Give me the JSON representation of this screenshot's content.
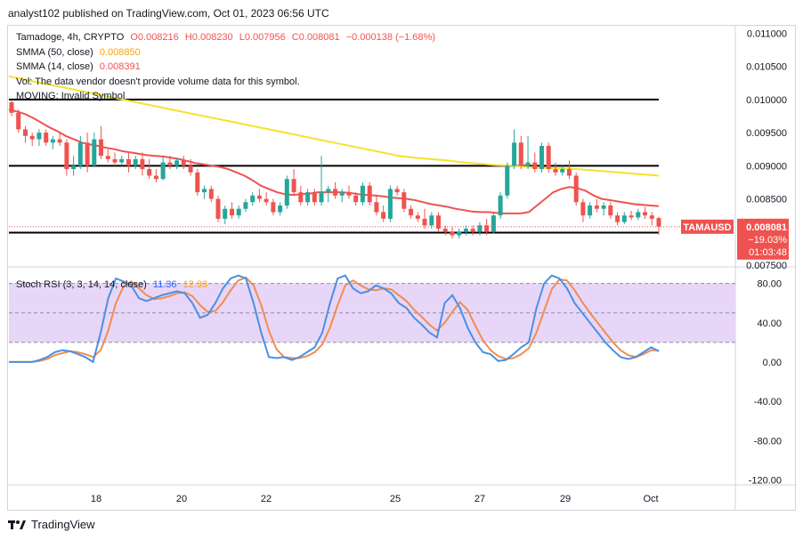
{
  "header": {
    "publisher": "analyst102 published on TradingView.com, Oct 01, 2023 06:56 UTC"
  },
  "legend": {
    "symbol": "Tamadoge, 4h, CRYPTO",
    "open": "O0.008216",
    "high": "H0.008230",
    "low": "L0.007956",
    "close": "C0.008081",
    "change": "−0.000138 (−1.68%)",
    "sma50_label": "SMMA (50, close)",
    "sma50_value": "0.008850",
    "sma14_label": "SMMA (14, close)",
    "sma14_value": "0.008391",
    "vol_note": "Vol: The data vendor doesn't provide volume data for this symbol.",
    "moving_note": "MOVING: Invalid Symbol"
  },
  "stoch": {
    "label": "Stoch RSI (3, 3, 14, 14, close)",
    "k_value": "11.36",
    "d_value": "12.33"
  },
  "price_tag": {
    "symbol": "TAMAUSD",
    "price": "0.008081",
    "change": "−19.03%",
    "countdown": "01:03:48"
  },
  "footer": {
    "brand": "TradingView"
  },
  "colors": {
    "up": "#26a69a",
    "down": "#ef5350",
    "sma50": "#f5e22a",
    "sma14": "#ef5350",
    "stoch_k": "#4a90e2",
    "stoch_d": "#f08c50",
    "band": "#e5d2f7"
  },
  "chart_data": [
    {
      "type": "candlestick",
      "x_tick_labels": [
        "18",
        "20",
        "22",
        "25",
        "27",
        "29",
        "Oct"
      ],
      "y_ticks": [
        "0.011000",
        "0.010500",
        "0.010000",
        "0.009500",
        "0.009000",
        "0.008500",
        "0.007500"
      ],
      "ylim": [
        0.0075,
        0.0111
      ],
      "horizontal_lines": [
        0.01,
        0.009,
        0.00799
      ],
      "candles": [
        [
          0.00996,
          0.00998,
          0.00975,
          0.0098
        ],
        [
          0.0098,
          0.00985,
          0.0095,
          0.00955
        ],
        [
          0.00955,
          0.0096,
          0.00935,
          0.00945
        ],
        [
          0.00945,
          0.0095,
          0.0093,
          0.0094
        ],
        [
          0.0094,
          0.00955,
          0.0093,
          0.0095
        ],
        [
          0.0095,
          0.00955,
          0.0093,
          0.00935
        ],
        [
          0.00935,
          0.00945,
          0.00925,
          0.0094
        ],
        [
          0.0094,
          0.0095,
          0.0093,
          0.00935
        ],
        [
          0.00935,
          0.0094,
          0.00885,
          0.00895
        ],
        [
          0.00895,
          0.00915,
          0.00885,
          0.009
        ],
        [
          0.009,
          0.00945,
          0.00895,
          0.00935
        ],
        [
          0.00935,
          0.0095,
          0.0089,
          0.009
        ],
        [
          0.009,
          0.0095,
          0.009,
          0.0094
        ],
        [
          0.0094,
          0.0096,
          0.0091,
          0.00915
        ],
        [
          0.00915,
          0.00925,
          0.00905,
          0.0091
        ],
        [
          0.0091,
          0.0092,
          0.009,
          0.00905
        ],
        [
          0.00905,
          0.00915,
          0.009,
          0.0091
        ],
        [
          0.0091,
          0.0092,
          0.0089,
          0.009
        ],
        [
          0.009,
          0.00915,
          0.00895,
          0.0091
        ],
        [
          0.0091,
          0.0092,
          0.00885,
          0.00895
        ],
        [
          0.00895,
          0.0091,
          0.0088,
          0.00885
        ],
        [
          0.00885,
          0.00895,
          0.00875,
          0.0088
        ],
        [
          0.0088,
          0.00915,
          0.00878,
          0.00905
        ],
        [
          0.00905,
          0.00915,
          0.00895,
          0.009
        ],
        [
          0.009,
          0.00912,
          0.00895,
          0.00908
        ],
        [
          0.00908,
          0.00915,
          0.00895,
          0.009
        ],
        [
          0.009,
          0.0091,
          0.00885,
          0.0089
        ],
        [
          0.0089,
          0.00895,
          0.00855,
          0.0086
        ],
        [
          0.0086,
          0.0087,
          0.0085,
          0.00865
        ],
        [
          0.00865,
          0.0087,
          0.00845,
          0.0085
        ],
        [
          0.0085,
          0.00855,
          0.00815,
          0.0082
        ],
        [
          0.0082,
          0.0084,
          0.00812,
          0.00835
        ],
        [
          0.00835,
          0.00845,
          0.0082,
          0.00825
        ],
        [
          0.00825,
          0.0084,
          0.0082,
          0.00835
        ],
        [
          0.00835,
          0.0085,
          0.0083,
          0.00845
        ],
        [
          0.00845,
          0.0086,
          0.0084,
          0.00855
        ],
        [
          0.00855,
          0.00865,
          0.00845,
          0.0085
        ],
        [
          0.0085,
          0.0086,
          0.0084,
          0.00845
        ],
        [
          0.00845,
          0.0085,
          0.00825,
          0.0083
        ],
        [
          0.0083,
          0.00845,
          0.00825,
          0.0084
        ],
        [
          0.0084,
          0.00885,
          0.00835,
          0.0088
        ],
        [
          0.0088,
          0.00895,
          0.00855,
          0.0086
        ],
        [
          0.0086,
          0.0087,
          0.0084,
          0.00845
        ],
        [
          0.00845,
          0.00865,
          0.0084,
          0.0086
        ],
        [
          0.0086,
          0.00865,
          0.0084,
          0.00845
        ],
        [
          0.00845,
          0.00915,
          0.0084,
          0.0086
        ],
        [
          0.0086,
          0.0087,
          0.00845,
          0.00865
        ],
        [
          0.00865,
          0.00875,
          0.0085,
          0.00855
        ],
        [
          0.00855,
          0.00865,
          0.00845,
          0.0086
        ],
        [
          0.0086,
          0.0087,
          0.0085,
          0.00855
        ],
        [
          0.00855,
          0.0086,
          0.0084,
          0.00845
        ],
        [
          0.00845,
          0.00875,
          0.0084,
          0.0087
        ],
        [
          0.0087,
          0.00875,
          0.0084,
          0.00845
        ],
        [
          0.00845,
          0.00855,
          0.00825,
          0.0083
        ],
        [
          0.0083,
          0.0084,
          0.00815,
          0.0082
        ],
        [
          0.0082,
          0.0087,
          0.00815,
          0.00865
        ],
        [
          0.00865,
          0.0087,
          0.00855,
          0.0086
        ],
        [
          0.0086,
          0.00865,
          0.0083,
          0.00835
        ],
        [
          0.00835,
          0.0084,
          0.0082,
          0.00825
        ],
        [
          0.00825,
          0.0083,
          0.00815,
          0.0082
        ],
        [
          0.0082,
          0.00835,
          0.00805,
          0.0081
        ],
        [
          0.0081,
          0.0083,
          0.00805,
          0.00825
        ],
        [
          0.00825,
          0.0083,
          0.008,
          0.00805
        ],
        [
          0.00805,
          0.0081,
          0.00795,
          0.008
        ],
        [
          0.008,
          0.00808,
          0.0079,
          0.00795
        ],
        [
          0.00795,
          0.00805,
          0.0079,
          0.008
        ],
        [
          0.008,
          0.0081,
          0.00795,
          0.00805
        ],
        [
          0.00805,
          0.0081,
          0.00795,
          0.008
        ],
        [
          0.008,
          0.00815,
          0.00795,
          0.0081
        ],
        [
          0.0081,
          0.0082,
          0.00795,
          0.008
        ],
        [
          0.008,
          0.0083,
          0.00798,
          0.00825
        ],
        [
          0.00825,
          0.0086,
          0.0082,
          0.00855
        ],
        [
          0.00855,
          0.00905,
          0.0085,
          0.009
        ],
        [
          0.009,
          0.00955,
          0.00895,
          0.00935
        ],
        [
          0.00935,
          0.00945,
          0.00895,
          0.009
        ],
        [
          0.009,
          0.00945,
          0.00895,
          0.00905
        ],
        [
          0.00905,
          0.0092,
          0.0089,
          0.00895
        ],
        [
          0.00895,
          0.00935,
          0.0089,
          0.0093
        ],
        [
          0.0093,
          0.00935,
          0.0089,
          0.00895
        ],
        [
          0.00895,
          0.00905,
          0.00885,
          0.0089
        ],
        [
          0.0089,
          0.009,
          0.00885,
          0.00895
        ],
        [
          0.00895,
          0.00908,
          0.0088,
          0.00885
        ],
        [
          0.00885,
          0.0089,
          0.0084,
          0.00845
        ],
        [
          0.00845,
          0.0085,
          0.00815,
          0.00825
        ],
        [
          0.00825,
          0.00845,
          0.0082,
          0.0084
        ],
        [
          0.0084,
          0.0085,
          0.0083,
          0.00835
        ],
        [
          0.00835,
          0.00845,
          0.00825,
          0.0084
        ],
        [
          0.0084,
          0.00845,
          0.0082,
          0.00825
        ],
        [
          0.00825,
          0.0083,
          0.0081,
          0.00815
        ],
        [
          0.00815,
          0.0083,
          0.00812,
          0.00825
        ],
        [
          0.00825,
          0.00832,
          0.00818,
          0.00822
        ],
        [
          0.00822,
          0.00835,
          0.00818,
          0.0083
        ],
        [
          0.0083,
          0.00838,
          0.0082,
          0.00825
        ],
        [
          0.00825,
          0.0083,
          0.0081,
          0.0082
        ],
        [
          0.00821,
          0.00823,
          0.00796,
          0.00808
        ]
      ],
      "smma14": [
        0.00985,
        0.00982,
        0.00978,
        0.00972,
        0.00965,
        0.00958,
        0.00952,
        0.00945,
        0.0094,
        0.00935,
        0.00932,
        0.0093,
        0.00927,
        0.00925,
        0.00922,
        0.0092,
        0.00918,
        0.00916,
        0.00915,
        0.00914,
        0.00912,
        0.0091,
        0.00907,
        0.00904,
        0.00902,
        0.009,
        0.00898,
        0.00895,
        0.0089,
        0.00885,
        0.00878,
        0.0087,
        0.00865,
        0.0086,
        0.00857,
        0.00856,
        0.00857,
        0.00858,
        0.0086,
        0.0086,
        0.0086,
        0.0086,
        0.00859,
        0.00857,
        0.00856,
        0.00855,
        0.00854,
        0.00852,
        0.00851,
        0.0085,
        0.00848,
        0.00845,
        0.00842,
        0.0084,
        0.00838,
        0.00835,
        0.00833,
        0.00831,
        0.0083,
        0.0083,
        0.00829,
        0.00828,
        0.00828,
        0.00828,
        0.0083,
        0.0084,
        0.0085,
        0.0086,
        0.00865,
        0.00868,
        0.00866,
        0.00862,
        0.00855,
        0.0085,
        0.00848,
        0.00846,
        0.00844,
        0.00842,
        0.00841,
        0.0084,
        0.00839
      ],
      "smma50": [
        0.01035,
        0.0103,
        0.01025,
        0.0102,
        0.01015,
        0.0101,
        0.01005,
        0.01,
        0.00995,
        0.0099,
        0.00985,
        0.0098,
        0.00975,
        0.0097,
        0.00965,
        0.0096,
        0.00955,
        0.0095,
        0.00945,
        0.0094,
        0.00935,
        0.0093,
        0.00925,
        0.0092,
        0.00915,
        0.00912,
        0.0091,
        0.00908,
        0.00905,
        0.00903,
        0.00901,
        0.009,
        0.00898,
        0.00897,
        0.00896,
        0.00895,
        0.00893,
        0.00891,
        0.00889,
        0.00887,
        0.00885
      ],
      "stoch_y_ticks": [
        "80.00",
        "40.00",
        "0.00",
        "-40.00",
        "-80.00",
        "-120.00"
      ],
      "stoch_bands": [
        80,
        50,
        20
      ],
      "stoch_ylim": [
        -125,
        95
      ],
      "stoch_k": [
        0,
        0,
        0,
        0,
        2,
        5,
        10,
        12,
        11,
        8,
        5,
        0,
        30,
        65,
        85,
        82,
        78,
        65,
        62,
        65,
        68,
        70,
        72,
        70,
        60,
        45,
        48,
        60,
        75,
        85,
        88,
        85,
        60,
        30,
        5,
        4,
        5,
        2,
        5,
        10,
        15,
        30,
        60,
        85,
        88,
        75,
        70,
        72,
        78,
        75,
        70,
        60,
        55,
        45,
        38,
        30,
        25,
        60,
        68,
        55,
        35,
        20,
        10,
        8,
        1,
        2,
        8,
        15,
        20,
        55,
        80,
        88,
        85,
        75,
        60,
        50,
        40,
        30,
        20,
        12,
        5,
        3,
        5,
        10,
        15,
        11
      ],
      "stoch_d": [
        0,
        0,
        0,
        0,
        1,
        3,
        7,
        9,
        11,
        10,
        8,
        5,
        12,
        32,
        60,
        77,
        82,
        75,
        68,
        64,
        65,
        67,
        70,
        71,
        67,
        58,
        51,
        52,
        61,
        73,
        83,
        86,
        78,
        58,
        32,
        13,
        5,
        4,
        4,
        6,
        10,
        18,
        35,
        58,
        78,
        83,
        78,
        74,
        73,
        75,
        74,
        68,
        62,
        53,
        46,
        38,
        32,
        40,
        51,
        61,
        53,
        37,
        22,
        12,
        6,
        3,
        4,
        8,
        14,
        30,
        52,
        74,
        84,
        83,
        73,
        61,
        50,
        40,
        30,
        20,
        12,
        7,
        5,
        8,
        12,
        12
      ]
    }
  ]
}
